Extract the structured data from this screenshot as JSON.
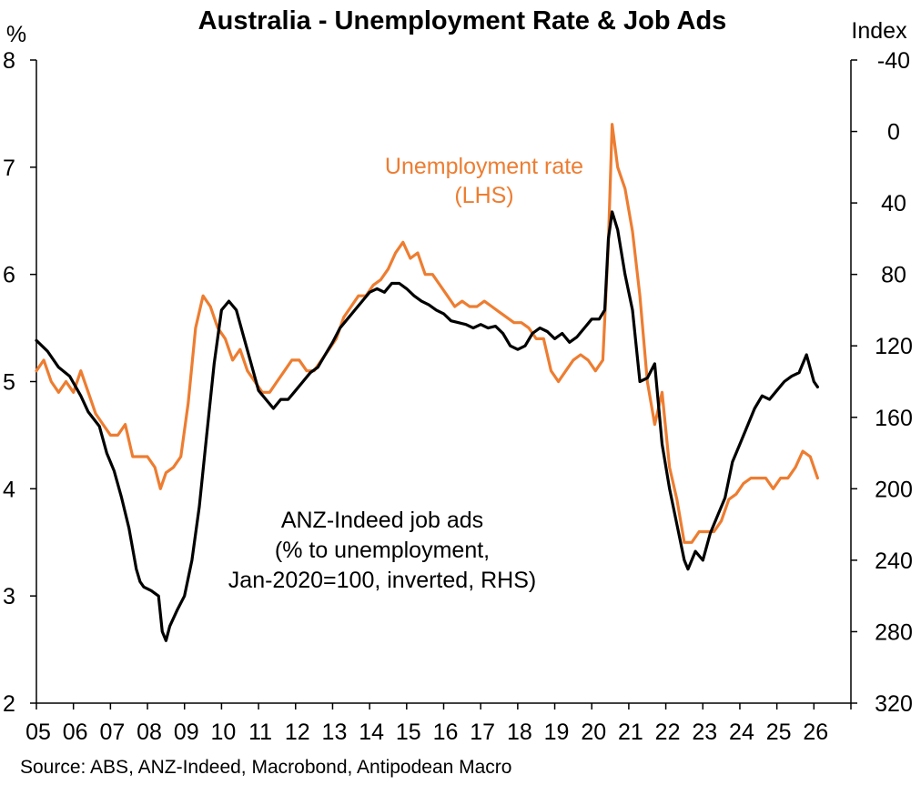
{
  "chart_data": {
    "type": "line",
    "title": "Australia - Unemployment Rate & Job Ads",
    "left_axis": {
      "unit": "%",
      "ylim": [
        2,
        8
      ],
      "ticks": [
        "2",
        "3",
        "4",
        "5",
        "6",
        "7",
        "8"
      ]
    },
    "right_axis": {
      "unit": "Index",
      "inverted": true,
      "ylim": [
        -40,
        320
      ],
      "ticks": [
        "-40",
        "0",
        "40",
        "80",
        "120",
        "160",
        "200",
        "240",
        "280",
        "320"
      ]
    },
    "x_axis": {
      "range": [
        2005,
        2027
      ],
      "ticks": [
        "05",
        "06",
        "07",
        "08",
        "09",
        "10",
        "11",
        "12",
        "13",
        "14",
        "15",
        "16",
        "17",
        "18",
        "19",
        "20",
        "21",
        "22",
        "23",
        "24",
        "25",
        "26"
      ]
    },
    "grid": false,
    "series": [
      {
        "name": "Unemployment rate (LHS)",
        "axis": "left",
        "color": "#ed7d31",
        "points": [
          [
            2005.0,
            5.1
          ],
          [
            2005.2,
            5.2
          ],
          [
            2005.4,
            5.0
          ],
          [
            2005.6,
            4.9
          ],
          [
            2005.8,
            5.0
          ],
          [
            2006.0,
            4.9
          ],
          [
            2006.2,
            5.1
          ],
          [
            2006.4,
            4.9
          ],
          [
            2006.6,
            4.7
          ],
          [
            2006.8,
            4.6
          ],
          [
            2007.0,
            4.5
          ],
          [
            2007.2,
            4.5
          ],
          [
            2007.4,
            4.6
          ],
          [
            2007.6,
            4.3
          ],
          [
            2007.8,
            4.3
          ],
          [
            2008.0,
            4.3
          ],
          [
            2008.2,
            4.2
          ],
          [
            2008.35,
            4.0
          ],
          [
            2008.5,
            4.15
          ],
          [
            2008.7,
            4.2
          ],
          [
            2008.9,
            4.3
          ],
          [
            2009.1,
            4.8
          ],
          [
            2009.3,
            5.5
          ],
          [
            2009.5,
            5.8
          ],
          [
            2009.7,
            5.7
          ],
          [
            2009.9,
            5.5
          ],
          [
            2010.1,
            5.4
          ],
          [
            2010.3,
            5.2
          ],
          [
            2010.5,
            5.3
          ],
          [
            2010.7,
            5.1
          ],
          [
            2010.9,
            5.0
          ],
          [
            2011.1,
            4.9
          ],
          [
            2011.3,
            4.9
          ],
          [
            2011.5,
            5.0
          ],
          [
            2011.7,
            5.1
          ],
          [
            2011.9,
            5.2
          ],
          [
            2012.1,
            5.2
          ],
          [
            2012.3,
            5.1
          ],
          [
            2012.5,
            5.1
          ],
          [
            2012.7,
            5.2
          ],
          [
            2012.9,
            5.3
          ],
          [
            2013.1,
            5.4
          ],
          [
            2013.3,
            5.6
          ],
          [
            2013.5,
            5.7
          ],
          [
            2013.7,
            5.8
          ],
          [
            2013.9,
            5.8
          ],
          [
            2014.1,
            5.9
          ],
          [
            2014.3,
            5.95
          ],
          [
            2014.5,
            6.05
          ],
          [
            2014.7,
            6.2
          ],
          [
            2014.9,
            6.3
          ],
          [
            2015.1,
            6.15
          ],
          [
            2015.3,
            6.2
          ],
          [
            2015.5,
            6.0
          ],
          [
            2015.7,
            6.0
          ],
          [
            2015.9,
            5.9
          ],
          [
            2016.1,
            5.8
          ],
          [
            2016.3,
            5.7
          ],
          [
            2016.5,
            5.75
          ],
          [
            2016.7,
            5.7
          ],
          [
            2016.9,
            5.7
          ],
          [
            2017.1,
            5.75
          ],
          [
            2017.3,
            5.7
          ],
          [
            2017.5,
            5.65
          ],
          [
            2017.7,
            5.6
          ],
          [
            2017.9,
            5.55
          ],
          [
            2018.1,
            5.55
          ],
          [
            2018.3,
            5.5
          ],
          [
            2018.5,
            5.4
          ],
          [
            2018.7,
            5.4
          ],
          [
            2018.9,
            5.1
          ],
          [
            2019.1,
            5.0
          ],
          [
            2019.3,
            5.1
          ],
          [
            2019.5,
            5.2
          ],
          [
            2019.7,
            5.25
          ],
          [
            2019.9,
            5.2
          ],
          [
            2020.1,
            5.1
          ],
          [
            2020.3,
            5.2
          ],
          [
            2020.45,
            6.3
          ],
          [
            2020.55,
            7.4
          ],
          [
            2020.7,
            7.0
          ],
          [
            2020.9,
            6.8
          ],
          [
            2021.1,
            6.4
          ],
          [
            2021.3,
            5.8
          ],
          [
            2021.5,
            5.0
          ],
          [
            2021.7,
            4.6
          ],
          [
            2021.9,
            4.9
          ],
          [
            2022.1,
            4.2
          ],
          [
            2022.3,
            3.9
          ],
          [
            2022.5,
            3.5
          ],
          [
            2022.7,
            3.5
          ],
          [
            2022.9,
            3.6
          ],
          [
            2023.1,
            3.6
          ],
          [
            2023.3,
            3.6
          ],
          [
            2023.5,
            3.7
          ],
          [
            2023.7,
            3.9
          ],
          [
            2023.9,
            3.95
          ],
          [
            2024.1,
            4.05
          ],
          [
            2024.3,
            4.1
          ],
          [
            2024.5,
            4.1
          ],
          [
            2024.7,
            4.1
          ],
          [
            2024.9,
            4.0
          ],
          [
            2025.1,
            4.1
          ],
          [
            2025.3,
            4.1
          ],
          [
            2025.5,
            4.2
          ],
          [
            2025.7,
            4.35
          ],
          [
            2025.9,
            4.3
          ],
          [
            2026.1,
            4.1
          ]
        ]
      },
      {
        "name": "ANZ-Indeed job ads (% to unemployment, Jan-2020=100, inverted, RHS)",
        "axis": "right",
        "color": "#000000",
        "points": [
          [
            2005.0,
            117
          ],
          [
            2005.3,
            123
          ],
          [
            2005.6,
            132
          ],
          [
            2005.9,
            137
          ],
          [
            2006.2,
            148
          ],
          [
            2006.4,
            157
          ],
          [
            2006.7,
            165
          ],
          [
            2006.9,
            180
          ],
          [
            2007.1,
            190
          ],
          [
            2007.3,
            205
          ],
          [
            2007.5,
            222
          ],
          [
            2007.7,
            245
          ],
          [
            2007.8,
            252
          ],
          [
            2007.9,
            255
          ],
          [
            2008.1,
            257
          ],
          [
            2008.3,
            260
          ],
          [
            2008.4,
            280
          ],
          [
            2008.5,
            285
          ],
          [
            2008.6,
            277
          ],
          [
            2008.8,
            268
          ],
          [
            2009.0,
            260
          ],
          [
            2009.2,
            240
          ],
          [
            2009.4,
            210
          ],
          [
            2009.6,
            170
          ],
          [
            2009.8,
            130
          ],
          [
            2010.0,
            100
          ],
          [
            2010.2,
            95
          ],
          [
            2010.4,
            100
          ],
          [
            2010.6,
            115
          ],
          [
            2010.8,
            130
          ],
          [
            2011.0,
            145
          ],
          [
            2011.2,
            150
          ],
          [
            2011.4,
            155
          ],
          [
            2011.6,
            150
          ],
          [
            2011.8,
            150
          ],
          [
            2012.0,
            145
          ],
          [
            2012.2,
            140
          ],
          [
            2012.4,
            135
          ],
          [
            2012.6,
            132
          ],
          [
            2012.8,
            125
          ],
          [
            2013.0,
            118
          ],
          [
            2013.2,
            110
          ],
          [
            2013.4,
            105
          ],
          [
            2013.6,
            100
          ],
          [
            2013.8,
            95
          ],
          [
            2014.0,
            90
          ],
          [
            2014.2,
            88
          ],
          [
            2014.4,
            90
          ],
          [
            2014.6,
            85
          ],
          [
            2014.8,
            85
          ],
          [
            2015.0,
            88
          ],
          [
            2015.2,
            92
          ],
          [
            2015.4,
            95
          ],
          [
            2015.6,
            97
          ],
          [
            2015.8,
            100
          ],
          [
            2016.0,
            102
          ],
          [
            2016.2,
            106
          ],
          [
            2016.4,
            107
          ],
          [
            2016.6,
            108
          ],
          [
            2016.8,
            110
          ],
          [
            2017.0,
            108
          ],
          [
            2017.2,
            110
          ],
          [
            2017.4,
            109
          ],
          [
            2017.6,
            113
          ],
          [
            2017.8,
            120
          ],
          [
            2018.0,
            122
          ],
          [
            2018.2,
            120
          ],
          [
            2018.4,
            113
          ],
          [
            2018.6,
            110
          ],
          [
            2018.8,
            112
          ],
          [
            2019.0,
            116
          ],
          [
            2019.2,
            113
          ],
          [
            2019.4,
            118
          ],
          [
            2019.6,
            115
          ],
          [
            2019.8,
            110
          ],
          [
            2020.0,
            105
          ],
          [
            2020.2,
            105
          ],
          [
            2020.35,
            100
          ],
          [
            2020.45,
            60
          ],
          [
            2020.55,
            45
          ],
          [
            2020.7,
            55
          ],
          [
            2020.9,
            80
          ],
          [
            2021.1,
            100
          ],
          [
            2021.3,
            140
          ],
          [
            2021.5,
            138
          ],
          [
            2021.7,
            130
          ],
          [
            2021.9,
            175
          ],
          [
            2022.1,
            200
          ],
          [
            2022.3,
            220
          ],
          [
            2022.5,
            240
          ],
          [
            2022.6,
            245
          ],
          [
            2022.8,
            235
          ],
          [
            2023.0,
            240
          ],
          [
            2023.2,
            225
          ],
          [
            2023.4,
            215
          ],
          [
            2023.6,
            205
          ],
          [
            2023.8,
            185
          ],
          [
            2024.0,
            175
          ],
          [
            2024.2,
            165
          ],
          [
            2024.4,
            155
          ],
          [
            2024.6,
            148
          ],
          [
            2024.8,
            150
          ],
          [
            2025.0,
            145
          ],
          [
            2025.2,
            140
          ],
          [
            2025.4,
            137
          ],
          [
            2025.6,
            135
          ],
          [
            2025.8,
            125
          ],
          [
            2026.0,
            140
          ],
          [
            2026.1,
            143
          ]
        ]
      }
    ],
    "annotations": [
      {
        "lines": [
          "Unemployment rate",
          "(LHS)"
        ],
        "color": "#ed7d31"
      },
      {
        "lines": [
          "ANZ-Indeed job ads",
          "(% to unemployment,",
          "Jan-2020=100, inverted, RHS)"
        ],
        "color": "#000000"
      }
    ],
    "source": "Source: ABS, ANZ-Indeed, Macrobond, Antipodean Macro"
  }
}
